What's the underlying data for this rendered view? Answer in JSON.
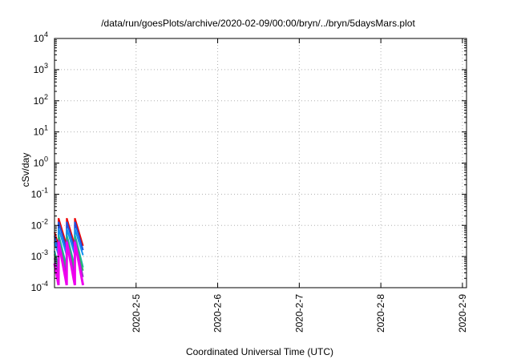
{
  "chart_data": {
    "type": "line",
    "title": "/data/run/goesPlots/archive/2020-02-09/00:00/bryn/../bryn/5daysMars.plot",
    "xlabel": "Coordinated Universal Time (UTC)",
    "ylabel": "cSv/day",
    "yscale": "log",
    "ylim": [
      0.0001,
      10000
    ],
    "xlim": [
      0,
      5.05
    ],
    "y_ticks": [
      {
        "base": "10",
        "exp": "-4",
        "value": 0.0001
      },
      {
        "base": "10",
        "exp": "-3",
        "value": 0.001
      },
      {
        "base": "10",
        "exp": "-2",
        "value": 0.01
      },
      {
        "base": "10",
        "exp": "-1",
        "value": 0.1
      },
      {
        "base": "10",
        "exp": "0",
        "value": 1
      },
      {
        "base": "10",
        "exp": "1",
        "value": 10
      },
      {
        "base": "10",
        "exp": "2",
        "value": 100
      },
      {
        "base": "10",
        "exp": "3",
        "value": 1000
      },
      {
        "base": "10",
        "exp": "4",
        "value": 10000
      }
    ],
    "x_ticks": [
      {
        "label": "2020-2-5",
        "value": 1
      },
      {
        "label": "2020-2-6",
        "value": 2
      },
      {
        "label": "2020-2-7",
        "value": 3
      },
      {
        "label": "2020-2-8",
        "value": 4
      },
      {
        "label": "2020-2-9",
        "value": 5
      }
    ],
    "grid": true,
    "cycle_length": 0.1,
    "cycle_phase": 0.05,
    "series": [
      {
        "color": "#ee0000",
        "width": 2,
        "peak": 0.017,
        "trough": 0.0022
      },
      {
        "color": "#2050e0",
        "width": 2,
        "peak": 0.013,
        "trough": 0.0016
      },
      {
        "color": "#1090f0",
        "width": 2,
        "peak": 0.008,
        "trough": 0.0011
      },
      {
        "color": "#10b0b0",
        "width": 2,
        "peak": 0.005,
        "trough": 0.00045
      },
      {
        "color": "#30c060",
        "width": 2,
        "peak": 0.004,
        "trough": 0.00035
      },
      {
        "color": "#8040c0",
        "width": 2,
        "peak": 0.0035,
        "trough": 0.00022
      },
      {
        "color": "#ee00ee",
        "width": 3,
        "peak": 0.003,
        "trough": 0.00012
      }
    ]
  }
}
